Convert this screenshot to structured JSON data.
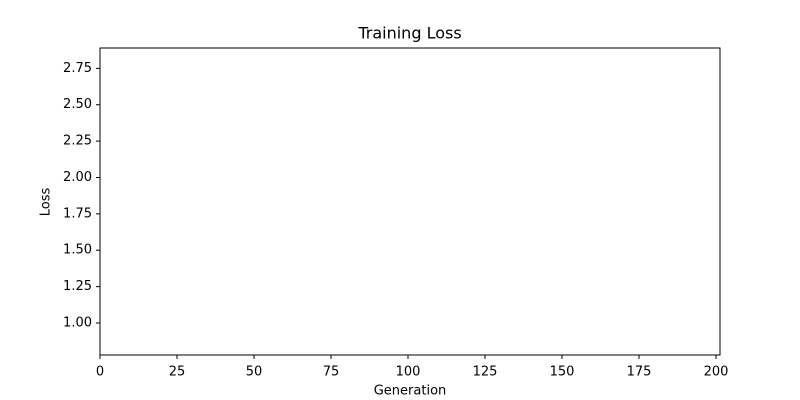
{
  "chart_data": {
    "type": "line",
    "title": "Training Loss",
    "x_label": "Generation",
    "y_label": "Loss",
    "series": [],
    "xlim": [
      0,
      201.3
    ],
    "xticks": [
      0,
      25,
      50,
      75,
      100,
      125,
      150,
      175,
      200
    ],
    "ylim": [
      0.78,
      2.89
    ],
    "yticks": [
      {
        "value": 1,
        "label": "1.00"
      },
      {
        "value": 1.25,
        "label": "1.25"
      },
      {
        "value": 1.5,
        "label": "1.50"
      },
      {
        "value": 1.75,
        "label": "1.75"
      },
      {
        "value": 2,
        "label": "2.00"
      },
      {
        "value": 2.25,
        "label": "2.25"
      },
      {
        "value": 2.5,
        "label": "2.50"
      },
      {
        "value": 2.75,
        "label": "2.75"
      }
    ],
    "grid": false
  }
}
